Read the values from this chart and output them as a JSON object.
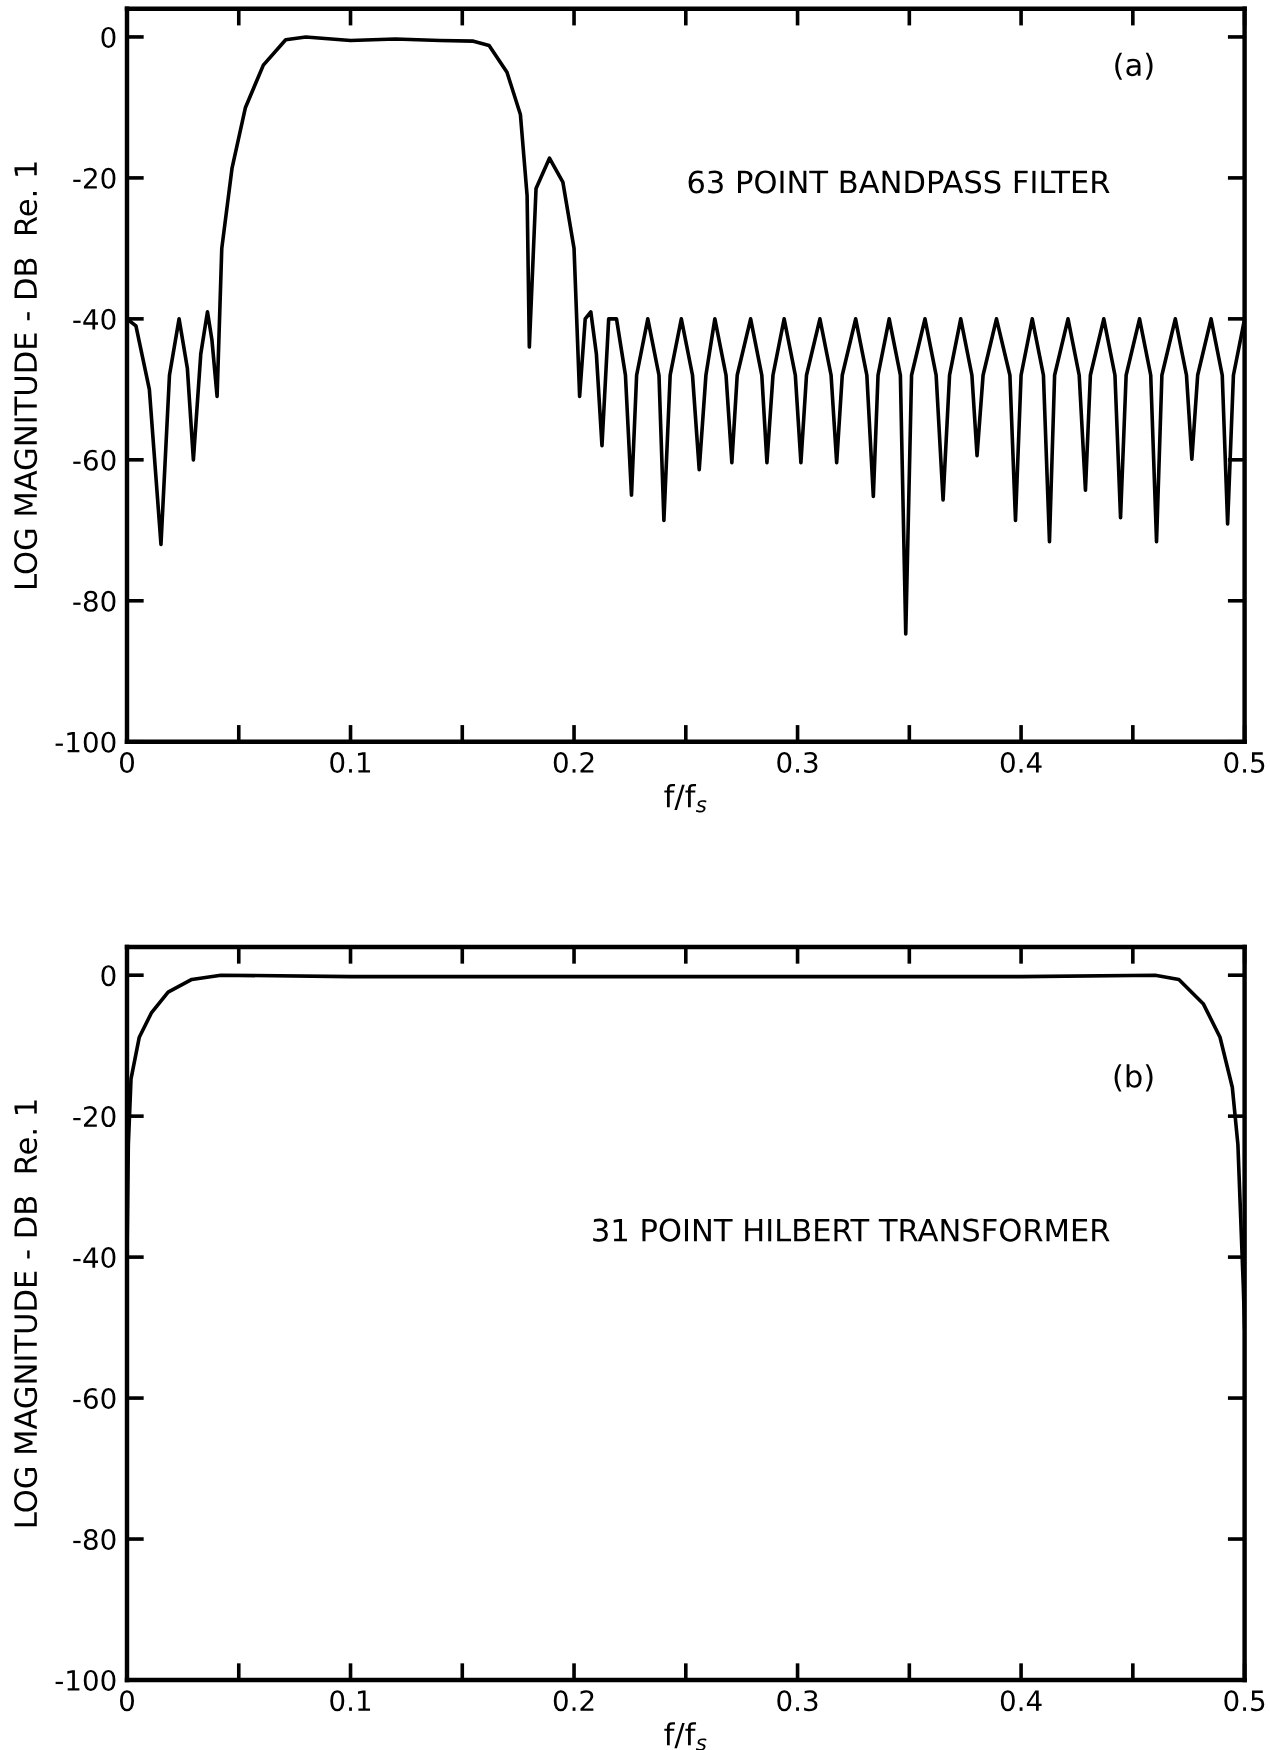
{
  "chart_data": [
    {
      "type": "line",
      "xlabel": "f/f$_{s}$",
      "ylabel": "LOG MAGNITUDE - DB  Re. 1",
      "annotations": [
        "(a)",
        "63 POINT BANDPASS FILTER"
      ],
      "series": [
        {
          "color": "#000000",
          "x": [
            0,
            0.004,
            0.01,
            0.0152,
            0.019,
            0.0233,
            0.027,
            0.0297,
            0.033,
            0.036,
            0.038,
            0.0403,
            0.0424,
            0.047,
            0.053,
            0.061,
            0.071,
            0.08,
            0.1,
            0.12,
            0.14,
            0.155,
            0.162,
            0.17,
            0.176,
            0.179,
            0.18,
            0.183,
            0.189,
            0.195,
            0.2,
            0.2025,
            0.205,
            0.2075,
            0.21,
            0.2125,
            0.2155,
            0.219,
            0.223,
            0.2257,
            0.228,
            0.233,
            0.238,
            0.2402,
            0.243,
            0.248,
            0.253,
            0.256,
            0.259,
            0.263,
            0.268,
            0.2706,
            0.273,
            0.279,
            0.284,
            0.2863,
            0.289,
            0.294,
            0.299,
            0.3015,
            0.304,
            0.31,
            0.315,
            0.3175,
            0.32,
            0.326,
            0.331,
            0.3339,
            0.336,
            0.341,
            0.346,
            0.3484,
            0.351,
            0.357,
            0.362,
            0.3651,
            0.368,
            0.373,
            0.378,
            0.3803,
            0.383,
            0.389,
            0.395,
            0.3975,
            0.4,
            0.405,
            0.41,
            0.4127,
            0.415,
            0.421,
            0.426,
            0.4288,
            0.431,
            0.437,
            0.442,
            0.4445,
            0.447,
            0.453,
            0.458,
            0.4606,
            0.463,
            0.469,
            0.474,
            0.4764,
            0.479,
            0.485,
            0.49,
            0.4924,
            0.495,
            0.5
          ],
          "values": [
            -40,
            -41,
            -50,
            -72,
            -48,
            -40,
            -47,
            -60,
            -45,
            -39,
            -43,
            -51,
            -30,
            -18.6,
            -10,
            -4,
            -0.4,
            0,
            -0.5,
            -0.3,
            -0.5,
            -0.6,
            -1.2,
            -5,
            -11,
            -22.5,
            -44,
            -21.5,
            -17.2,
            -20.6,
            -30,
            -51,
            -40,
            -39,
            -45,
            -58,
            -40,
            -40,
            -48,
            -65,
            -48,
            -40,
            -48,
            -68.6,
            -48,
            -40,
            -48,
            -61.4,
            -48,
            -40,
            -48,
            -60.4,
            -48,
            -40,
            -48,
            -60.4,
            -48,
            -40,
            -48,
            -60.4,
            -48,
            -40,
            -48,
            -60.4,
            -48,
            -40,
            -48,
            -65.2,
            -48,
            -40,
            -48,
            -84.7,
            -48,
            -40,
            -48,
            -65.7,
            -48,
            -40,
            -48,
            -59.4,
            -48,
            -40,
            -48,
            -68.6,
            -48,
            -40,
            -48,
            -71.6,
            -48,
            -40,
            -48,
            -64.3,
            -48,
            -40,
            -48,
            -68.2,
            -48,
            -40,
            -48,
            -71.6,
            -48,
            -40,
            -48,
            -59.9,
            -48,
            -40,
            -48,
            -69.1,
            -48,
            -40
          ]
        }
      ],
      "xlim": [
        0,
        0.5
      ],
      "ylim": [
        -100,
        4
      ],
      "xticks": [
        0,
        {
          "value": 0.05,
          "label": null
        },
        {
          "value": 0.1,
          "label": "0.1"
        },
        {
          "value": 0.15,
          "label": null
        },
        {
          "value": 0.2,
          "label": "0.2"
        },
        {
          "value": 0.25,
          "label": null
        },
        {
          "value": 0.3,
          "label": "0.3"
        },
        {
          "value": 0.35,
          "label": null
        },
        {
          "value": 0.4,
          "label": "0.4"
        },
        {
          "value": 0.45,
          "label": null
        },
        {
          "value": 0.5,
          "label": "0.5"
        }
      ],
      "yticks": [
        0,
        -20,
        -40,
        -60,
        -80,
        -100
      ],
      "grid": false,
      "line_style": "solid",
      "marker": "none"
    },
    {
      "type": "line",
      "xlabel": "f/f$_{s}$",
      "ylabel": "LOG MAGNITUDE - DB  Re. 1",
      "annotations": [
        "(b)",
        "31 POINT HILBERT TRANSFORMER"
      ],
      "series": [
        {
          "color": "#000000",
          "x": [
            0,
            0.0006,
            0.0018,
            0.0055,
            0.011,
            0.0184,
            0.029,
            0.042,
            0.1,
            0.2,
            0.3,
            0.4,
            0.46,
            0.4706,
            0.4816,
            0.489,
            0.4945,
            0.497,
            0.4994,
            0.5
          ],
          "values": [
            -40,
            -24,
            -14.7,
            -8.8,
            -5.3,
            -2.4,
            -0.6,
            0,
            -0.2,
            -0.2,
            -0.2,
            -0.2,
            0,
            -0.6,
            -4.1,
            -8.8,
            -15.9,
            -24,
            -44,
            -50
          ]
        }
      ],
      "xlim": [
        0,
        0.5
      ],
      "ylim": [
        -100,
        4
      ],
      "xticks": [
        0,
        {
          "value": 0.05,
          "label": null
        },
        {
          "value": 0.1,
          "label": "0.1"
        },
        {
          "value": 0.15,
          "label": null
        },
        {
          "value": 0.2,
          "label": "0.2"
        },
        {
          "value": 0.25,
          "label": null
        },
        {
          "value": 0.3,
          "label": "0.3"
        },
        {
          "value": 0.35,
          "label": null
        },
        {
          "value": 0.4,
          "label": "0.4"
        },
        {
          "value": 0.45,
          "label": null
        },
        {
          "value": 0.5,
          "label": "0.5"
        }
      ],
      "yticks": [
        0,
        -20,
        -40,
        -60,
        -80,
        -100
      ],
      "grid": false,
      "line_style": "solid",
      "marker": "none"
    }
  ]
}
